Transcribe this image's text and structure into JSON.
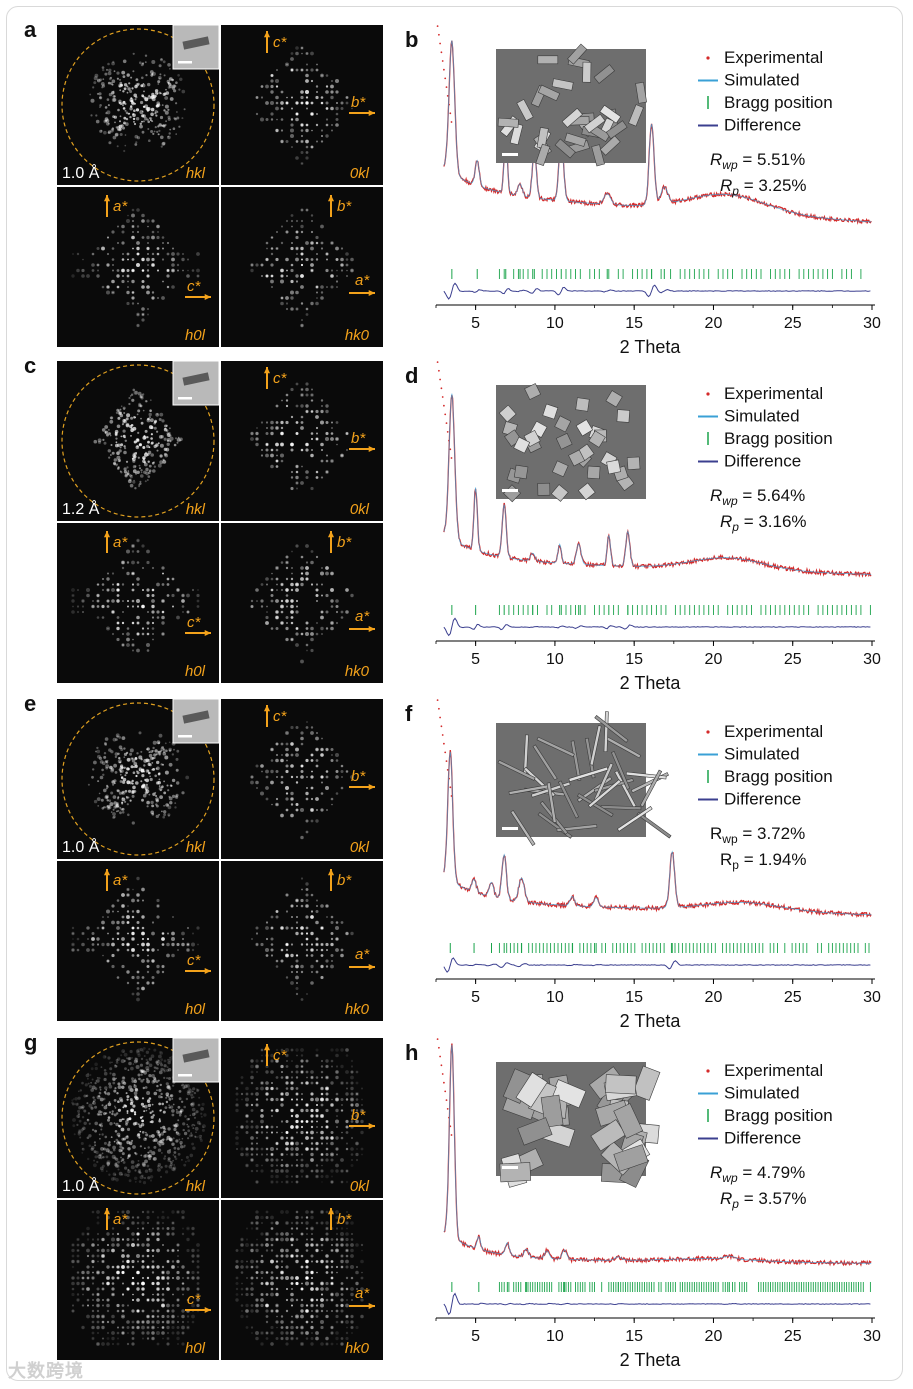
{
  "figure": {
    "watermark": "大数跨境"
  },
  "colors": {
    "experimental": "#d42a2a",
    "simulated": "#3aa0d6",
    "bragg": "#1aa34a",
    "difference": "#3b3f8f",
    "arrow": "#f3a21b",
    "circle": "#e0a020"
  },
  "rows": [
    {
      "ed": {
        "letter": "a",
        "resolution": "1.0 Å",
        "labels": {
          "hkl": "hkl",
          "0kl": "0kl",
          "h0l": "h0l",
          "hk0": "hk0"
        },
        "axes": {
          "c": "c*",
          "b": "b*",
          "a": "a*",
          "a2": "a*"
        },
        "pattern": "blob-cross"
      },
      "xrd": {
        "letter": "b",
        "xlabel": "2 Theta",
        "xticks": [
          "5",
          "10",
          "15",
          "20",
          "25",
          "30"
        ],
        "legend": [
          "Experimental",
          "Simulated",
          "Bragg position",
          "Difference"
        ],
        "rwp_label": "R",
        "rwp_sub": "wp",
        "rwp_value": " = 5.51%",
        "rp_label": "R",
        "rp_sub": "p",
        "rp_value": " = 3.25%",
        "italic": true,
        "chart_data": {
          "type": "line",
          "xlim": [
            2.5,
            30
          ],
          "baseline": 0.28,
          "peaks": [
            [
              3.5,
              0.62,
              0.25
            ],
            [
              5.1,
              0.12,
              0.18
            ],
            [
              6.9,
              0.28,
              0.15
            ],
            [
              7.8,
              0.06,
              0.2
            ],
            [
              8.7,
              0.24,
              0.18
            ],
            [
              10.4,
              0.35,
              0.2
            ],
            [
              13.3,
              0.06,
              0.3
            ],
            [
              16.1,
              0.48,
              0.22
            ],
            [
              16.9,
              0.1,
              0.3
            ]
          ],
          "hump": [
            21,
            0.12,
            3.5
          ],
          "bragg_density": 1.0
        },
        "sem_style": "rods"
      }
    },
    {
      "ed": {
        "letter": "c",
        "resolution": "1.2 Å",
        "labels": {
          "hkl": "hkl",
          "0kl": "0kl",
          "h0l": "h0l",
          "hk0": "hk0"
        },
        "axes": {
          "c": "c*",
          "b": "b*",
          "a": "a*",
          "a2": "a*"
        },
        "pattern": "diamond"
      },
      "xrd": {
        "letter": "d",
        "xlabel": "2 Theta",
        "xticks": [
          "5",
          "10",
          "15",
          "20",
          "25",
          "30"
        ],
        "legend": [
          "Experimental",
          "Simulated",
          "Bragg position",
          "Difference"
        ],
        "rwp_label": "R",
        "rwp_sub": "wp",
        "rwp_value": " = 5.64%",
        "rp_label": "R",
        "rp_sub": "p",
        "rp_value": " = 3.16%",
        "italic": true,
        "chart_data": {
          "type": "line",
          "xlim": [
            2.5,
            30
          ],
          "baseline": 0.14,
          "peaks": [
            [
              3.5,
              0.68,
              0.25
            ],
            [
              5.0,
              0.3,
              0.15
            ],
            [
              6.8,
              0.26,
              0.18
            ],
            [
              8.6,
              0.04,
              0.2
            ],
            [
              10.3,
              0.1,
              0.15
            ],
            [
              11.5,
              0.11,
              0.2
            ],
            [
              13.4,
              0.17,
              0.15
            ],
            [
              14.6,
              0.2,
              0.18
            ]
          ],
          "hump": [
            21,
            0.08,
            3.2
          ],
          "bragg_density": 1.0
        },
        "sem_style": "cubes"
      }
    },
    {
      "ed": {
        "letter": "e",
        "resolution": "1.0 Å",
        "labels": {
          "hkl": "hkl",
          "0kl": "0kl",
          "h0l": "h0l",
          "hk0": "hk0"
        },
        "axes": {
          "c": "c*",
          "b": "b*",
          "a": "a*",
          "a2": "a*"
        },
        "pattern": "dense-blob"
      },
      "xrd": {
        "letter": "f",
        "xlabel": "2 Theta",
        "xticks": [
          "5",
          "10",
          "15",
          "20",
          "25",
          "30"
        ],
        "legend": [
          "Experimental",
          "Simulated",
          "Bragg position",
          "Difference"
        ],
        "rwp_label": "R",
        "rwp_sub": "wp",
        "rwp_value": " = 3.72%",
        "rp_label": "R",
        "rp_sub": "p",
        "rp_value": " = 1.94%",
        "italic": false,
        "chart_data": {
          "type": "line",
          "xlim": [
            2.5,
            30
          ],
          "baseline": 0.12,
          "peaks": [
            [
              3.4,
              0.6,
              0.22
            ],
            [
              4.9,
              0.06,
              0.2
            ],
            [
              6.0,
              0.07,
              0.2
            ],
            [
              6.8,
              0.22,
              0.2
            ],
            [
              7.9,
              0.12,
              0.25
            ],
            [
              11.1,
              0.05,
              0.2
            ],
            [
              12.6,
              0.05,
              0.2
            ],
            [
              17.4,
              0.34,
              0.22
            ]
          ],
          "hump": [
            22,
            0.06,
            3.5
          ],
          "bragg_density": 1.3
        },
        "sem_style": "needles"
      }
    },
    {
      "ed": {
        "letter": "g",
        "resolution": "1.0 Å",
        "labels": {
          "hkl": "hkl",
          "0kl": "0kl",
          "h0l": "h0l",
          "hk0": "hk0"
        },
        "axes": {
          "c": "c*",
          "b": "b*",
          "a": "a*",
          "a2": "a*"
        },
        "pattern": "hexagon"
      },
      "xrd": {
        "letter": "h",
        "xlabel": "2 Theta",
        "xticks": [
          "5",
          "10",
          "15",
          "20",
          "25",
          "30"
        ],
        "legend": [
          "Experimental",
          "Simulated",
          "Bragg position",
          "Difference"
        ],
        "rwp_label": "R",
        "rwp_sub": "wp",
        "rwp_value": " = 4.79%",
        "rp_label": "R",
        "rp_sub": "p",
        "rp_value": " = 3.57%",
        "italic": true,
        "chart_data": {
          "type": "line",
          "xlim": [
            2.5,
            30
          ],
          "baseline": 0.04,
          "peaks": [
            [
              3.5,
              0.9,
              0.22
            ],
            [
              5.2,
              0.06,
              0.15
            ],
            [
              7.0,
              0.06,
              0.18
            ],
            [
              8.2,
              0.04,
              0.2
            ],
            [
              9.5,
              0.04,
              0.2
            ],
            [
              10.6,
              0.05,
              0.2
            ],
            [
              14.0,
              0.02,
              0.3
            ],
            [
              21,
              0.02,
              0.5
            ]
          ],
          "hump": [
            20,
            0.02,
            4
          ],
          "bragg_density": 2.0
        },
        "sem_style": "plates"
      }
    }
  ]
}
